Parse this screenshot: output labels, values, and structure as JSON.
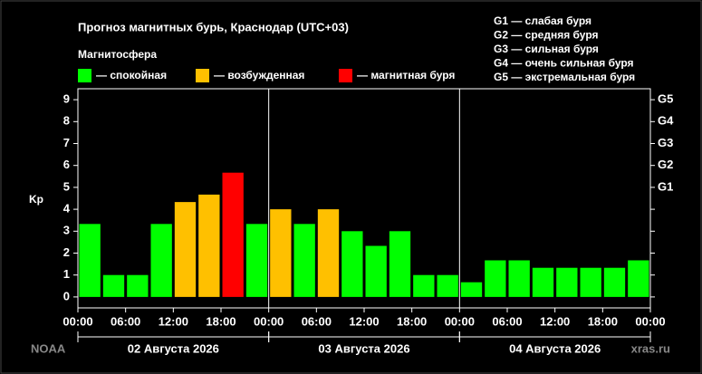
{
  "chart_data": {
    "type": "bar",
    "title": "Прогноз магнитных бурь, Краснодар (UTC+03)",
    "legend_title": "Магнитосфера",
    "legend": [
      {
        "name": "— спокойная",
        "color": "#00ff00"
      },
      {
        "name": "— возбужденная",
        "color": "#ffc000"
      },
      {
        "name": "— магнитная буря",
        "color": "#ff0000"
      }
    ],
    "storm_levels": [
      "G1 — слабая буря",
      "G2 — средняя буря",
      "G3 — сильная буря",
      "G4 — очень сильная буря",
      "G5 — экстремальная буря"
    ],
    "ylabel": "Kp",
    "x": [
      0,
      3,
      6,
      9,
      12,
      15,
      18,
      21,
      24,
      27,
      30,
      33,
      36,
      39,
      42,
      45,
      48,
      51,
      54,
      57,
      60,
      63,
      66,
      69
    ],
    "bar_width": 3,
    "values": [
      3.33,
      1,
      1,
      3.33,
      4.33,
      4.67,
      5.67,
      3.33,
      4,
      3.33,
      4,
      3,
      2.33,
      3,
      1,
      1,
      0.67,
      1.67,
      1.67,
      1.33,
      1.33,
      1.33,
      1.33,
      1.67
    ],
    "colors": [
      "#00ff00",
      "#00ff00",
      "#00ff00",
      "#00ff00",
      "#ffc000",
      "#ffc000",
      "#ff0000",
      "#00ff00",
      "#ffc000",
      "#00ff00",
      "#ffc000",
      "#00ff00",
      "#00ff00",
      "#00ff00",
      "#00ff00",
      "#00ff00",
      "#00ff00",
      "#00ff00",
      "#00ff00",
      "#00ff00",
      "#00ff00",
      "#00ff00",
      "#00ff00",
      "#00ff00"
    ],
    "xlim": [
      0,
      72
    ],
    "xticks": [
      {
        "value": 0,
        "label": "00:00"
      },
      {
        "value": 6,
        "label": "06:00"
      },
      {
        "value": 12,
        "label": "12:00"
      },
      {
        "value": 18,
        "label": "18:00"
      },
      {
        "value": 24,
        "label": "00:00"
      },
      {
        "value": 30,
        "label": "06:00"
      },
      {
        "value": 36,
        "label": "12:00"
      },
      {
        "value": 42,
        "label": "18:00"
      },
      {
        "value": 48,
        "label": "00:00"
      },
      {
        "value": 54,
        "label": "06:00"
      },
      {
        "value": 60,
        "label": "12:00"
      },
      {
        "value": 66,
        "label": "18:00"
      },
      {
        "value": 72,
        "label": "00:00"
      }
    ],
    "days": [
      {
        "label": "02 Августа 2026",
        "start": 0,
        "end": 24
      },
      {
        "label": "03 Августа 2026",
        "start": 24,
        "end": 48
      },
      {
        "label": "04 Августа 2026",
        "start": 48,
        "end": 72
      }
    ],
    "ylim": [
      -0.5,
      9.5
    ],
    "yticks": [
      0,
      1,
      2,
      3,
      4,
      5,
      6,
      7,
      8,
      9
    ],
    "y2lim": [
      -0.5,
      9.5
    ],
    "y2ticks": [
      {
        "value": 5,
        "label": "G1"
      },
      {
        "value": 6,
        "label": "G2"
      },
      {
        "value": 7,
        "label": "G3"
      },
      {
        "value": 8,
        "label": "G4"
      },
      {
        "value": 9,
        "label": "G5"
      }
    ],
    "source_left": "NOAA",
    "source_right": "xras.ru"
  }
}
